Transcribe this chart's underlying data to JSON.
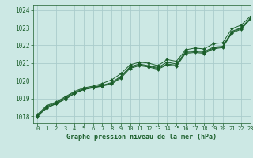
{
  "title": "Graphe pression niveau de la mer (hPa)",
  "background_color": "#cce8e4",
  "grid_color": "#aacccc",
  "line_color": "#1a5e2a",
  "marker_color": "#1a5e2a",
  "xlim": [
    -0.5,
    23
  ],
  "ylim": [
    1017.6,
    1024.3
  ],
  "yticks": [
    1018,
    1019,
    1020,
    1021,
    1022,
    1023,
    1024
  ],
  "xticks": [
    0,
    1,
    2,
    3,
    4,
    5,
    6,
    7,
    8,
    9,
    10,
    11,
    12,
    13,
    14,
    15,
    16,
    17,
    18,
    19,
    20,
    21,
    22,
    23
  ],
  "series": [
    [
      1018.1,
      1018.6,
      1018.8,
      1019.1,
      1019.4,
      1019.6,
      1019.7,
      1019.85,
      1020.05,
      1020.4,
      1020.9,
      1021.05,
      1021.0,
      1020.85,
      1021.2,
      1021.1,
      1021.75,
      1021.85,
      1021.8,
      1022.1,
      1022.15,
      1022.95,
      1023.15,
      1023.65
    ],
    [
      1018.05,
      1018.55,
      1018.75,
      1019.05,
      1019.35,
      1019.55,
      1019.65,
      1019.75,
      1019.9,
      1020.25,
      1020.8,
      1020.95,
      1020.85,
      1020.75,
      1021.05,
      1020.95,
      1021.65,
      1021.7,
      1021.65,
      1021.9,
      1021.95,
      1022.8,
      1023.0,
      1023.55
    ],
    [
      1018.0,
      1018.45,
      1018.7,
      1018.95,
      1019.28,
      1019.5,
      1019.6,
      1019.7,
      1019.82,
      1020.15,
      1020.7,
      1020.85,
      1020.78,
      1020.65,
      1020.9,
      1020.82,
      1021.55,
      1021.6,
      1021.55,
      1021.8,
      1021.88,
      1022.7,
      1022.92,
      1023.48
    ],
    [
      1018.02,
      1018.48,
      1018.72,
      1018.98,
      1019.3,
      1019.52,
      1019.62,
      1019.72,
      1019.86,
      1020.2,
      1020.75,
      1020.9,
      1020.82,
      1020.7,
      1020.95,
      1020.88,
      1021.6,
      1021.65,
      1021.6,
      1021.85,
      1021.92,
      1022.75,
      1022.97,
      1023.52
    ]
  ]
}
